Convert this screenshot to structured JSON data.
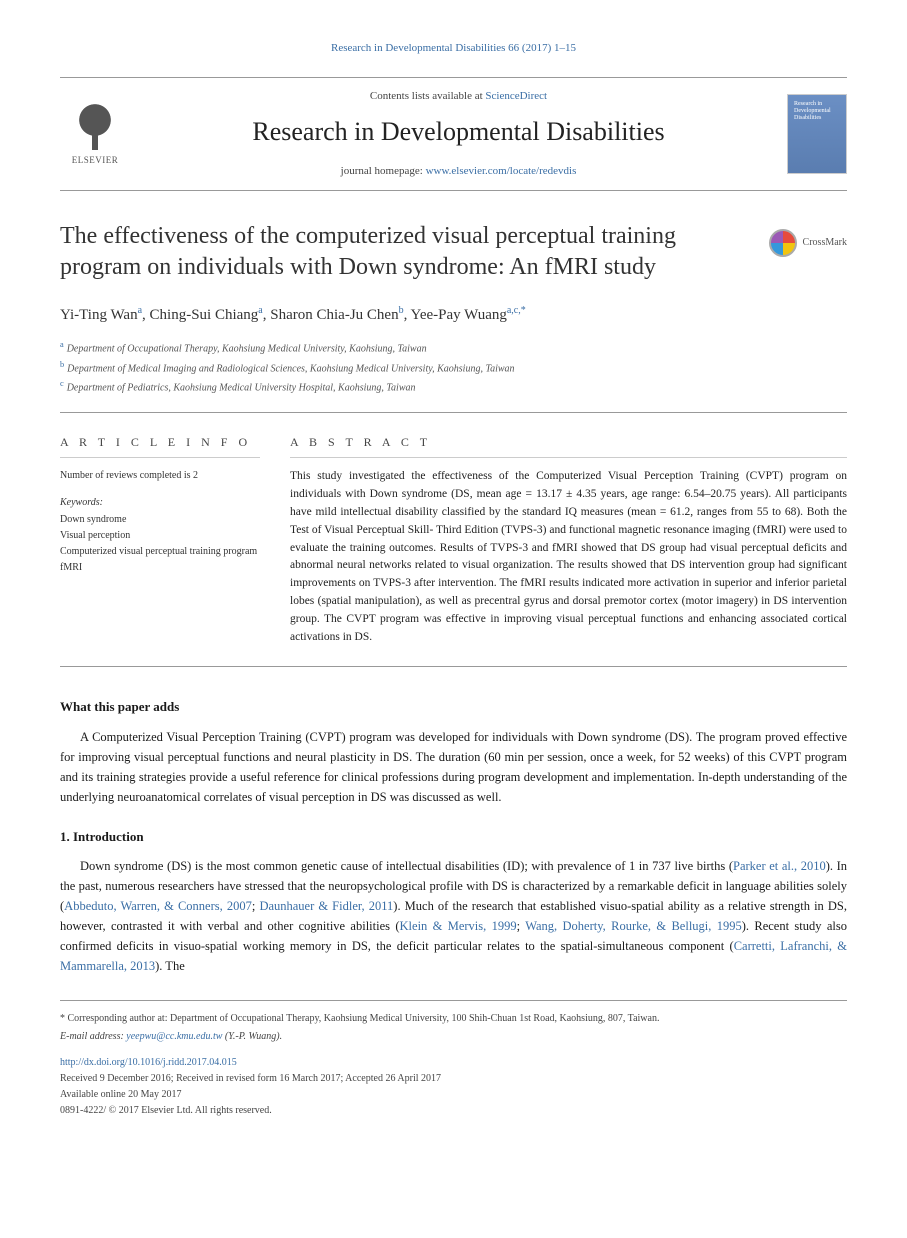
{
  "running_head": "Research in Developmental Disabilities 66 (2017) 1–15",
  "masthead": {
    "publisher": "ELSEVIER",
    "contents_prefix": "Contents lists available at ",
    "contents_link": "ScienceDirect",
    "journal": "Research in Developmental Disabilities",
    "homepage_prefix": "journal homepage: ",
    "homepage_url": "www.elsevier.com/locate/redevdis",
    "cover_text": "Research in Developmental Disabilities"
  },
  "title": "The effectiveness of the computerized visual perceptual training program on individuals with Down syndrome: An fMRI study",
  "crossmark": "CrossMark",
  "authors_html": "Yi-Ting Wan<sup>a</sup>, Ching-Sui Chiang<sup>a</sup>, Sharon Chia-Ju Chen<sup>b</sup>, Yee-Pay Wuang<sup>a,c,*</sup>",
  "affiliations": [
    {
      "marker": "a",
      "text": "Department of Occupational Therapy, Kaohsiung Medical University, Kaohsiung, Taiwan"
    },
    {
      "marker": "b",
      "text": "Department of Medical Imaging and Radiological Sciences, Kaohsiung Medical University, Kaohsiung, Taiwan"
    },
    {
      "marker": "c",
      "text": "Department of Pediatrics, Kaohsiung Medical University Hospital, Kaohsiung, Taiwan"
    }
  ],
  "article_info": {
    "label": "A R T I C L E  I N F O",
    "reviews": "Number of reviews completed is 2",
    "keywords_label": "Keywords:",
    "keywords": [
      "Down syndrome",
      "Visual perception",
      "Computerized visual perceptual training program",
      "fMRI"
    ]
  },
  "abstract": {
    "label": "A B S T R A C T",
    "text": "This study investigated the effectiveness of the Computerized Visual Perception Training (CVPT) program on individuals with Down syndrome (DS, mean age = 13.17 ± 4.35 years, age range: 6.54–20.75 years). All participants have mild intellectual disability classified by the standard IQ measures (mean = 61.2, ranges from 55 to 68). Both the Test of Visual Perceptual Skill- Third Edition (TVPS-3) and functional magnetic resonance imaging (fMRI) were used to evaluate the training outcomes. Results of TVPS-3 and fMRI showed that DS group had visual perceptual deficits and abnormal neural networks related to visual organization. The results showed that DS intervention group had significant improvements on TVPS-3 after intervention. The fMRI results indicated more activation in superior and inferior parietal lobes (spatial manipulation), as well as precentral gyrus and dorsal premotor cortex (motor imagery) in DS intervention group. The CVPT program was effective in improving visual perceptual functions and enhancing associated cortical activations in DS."
  },
  "sections": {
    "adds": {
      "heading": "What this paper adds",
      "text": "A Computerized Visual Perception Training (CVPT) program was developed for individuals with Down syndrome (DS). The program proved effective for improving visual perceptual functions and neural plasticity in DS. The duration (60 min per session, once a week, for 52 weeks) of this CVPT program and its training strategies provide a useful reference for clinical professions during program development and implementation. In-depth understanding of the underlying neuroanatomical correlates of visual perception in DS was discussed as well."
    },
    "intro": {
      "heading": "1. Introduction",
      "p1_a": "Down syndrome (DS) is the most common genetic cause of intellectual disabilities (ID); with prevalence of 1 in 737 live births (",
      "p1_ref1": "Parker et al., 2010",
      "p1_b": "). In the past, numerous researchers have stressed that the neuropsychological profile with DS is characterized by a remarkable deficit in language abilities solely (",
      "p1_ref2": "Abbeduto, Warren, & Conners, 2007",
      "p1_c": "; ",
      "p1_ref3": "Daunhauer & Fidler, 2011",
      "p1_d": "). Much of the research that established visuo-spatial ability as a relative strength in DS, however, contrasted it with verbal and other cognitive abilities (",
      "p1_ref4": "Klein & Mervis, 1999",
      "p1_e": "; ",
      "p1_ref5": "Wang, Doherty, Rourke, & Bellugi, 1995",
      "p1_f": "). Recent study also confirmed deficits in visuo-spatial working memory in DS, the deficit particular relates to the spatial-simultaneous component (",
      "p1_ref6": "Carretti, Lafranchi, & Mammarella, 2013",
      "p1_g": "). The"
    }
  },
  "footer": {
    "corresponding": "* Corresponding author at: Department of Occupational Therapy, Kaohsiung Medical University, 100 Shih-Chuan 1st Road, Kaohsiung, 807, Taiwan.",
    "email_label": "E-mail address: ",
    "email": "yeepwu@cc.kmu.edu.tw",
    "email_paren": " (Y.-P. Wuang).",
    "doi": "http://dx.doi.org/10.1016/j.ridd.2017.04.015",
    "history": "Received 9 December 2016; Received in revised form 16 March 2017; Accepted 26 April 2017",
    "available": "Available online 20 May 2017",
    "copyright": "0891-4222/ © 2017 Elsevier Ltd. All rights reserved."
  },
  "colors": {
    "link": "#3a6ea5",
    "text": "#1a1a1a",
    "muted": "#555",
    "rule": "#999"
  }
}
